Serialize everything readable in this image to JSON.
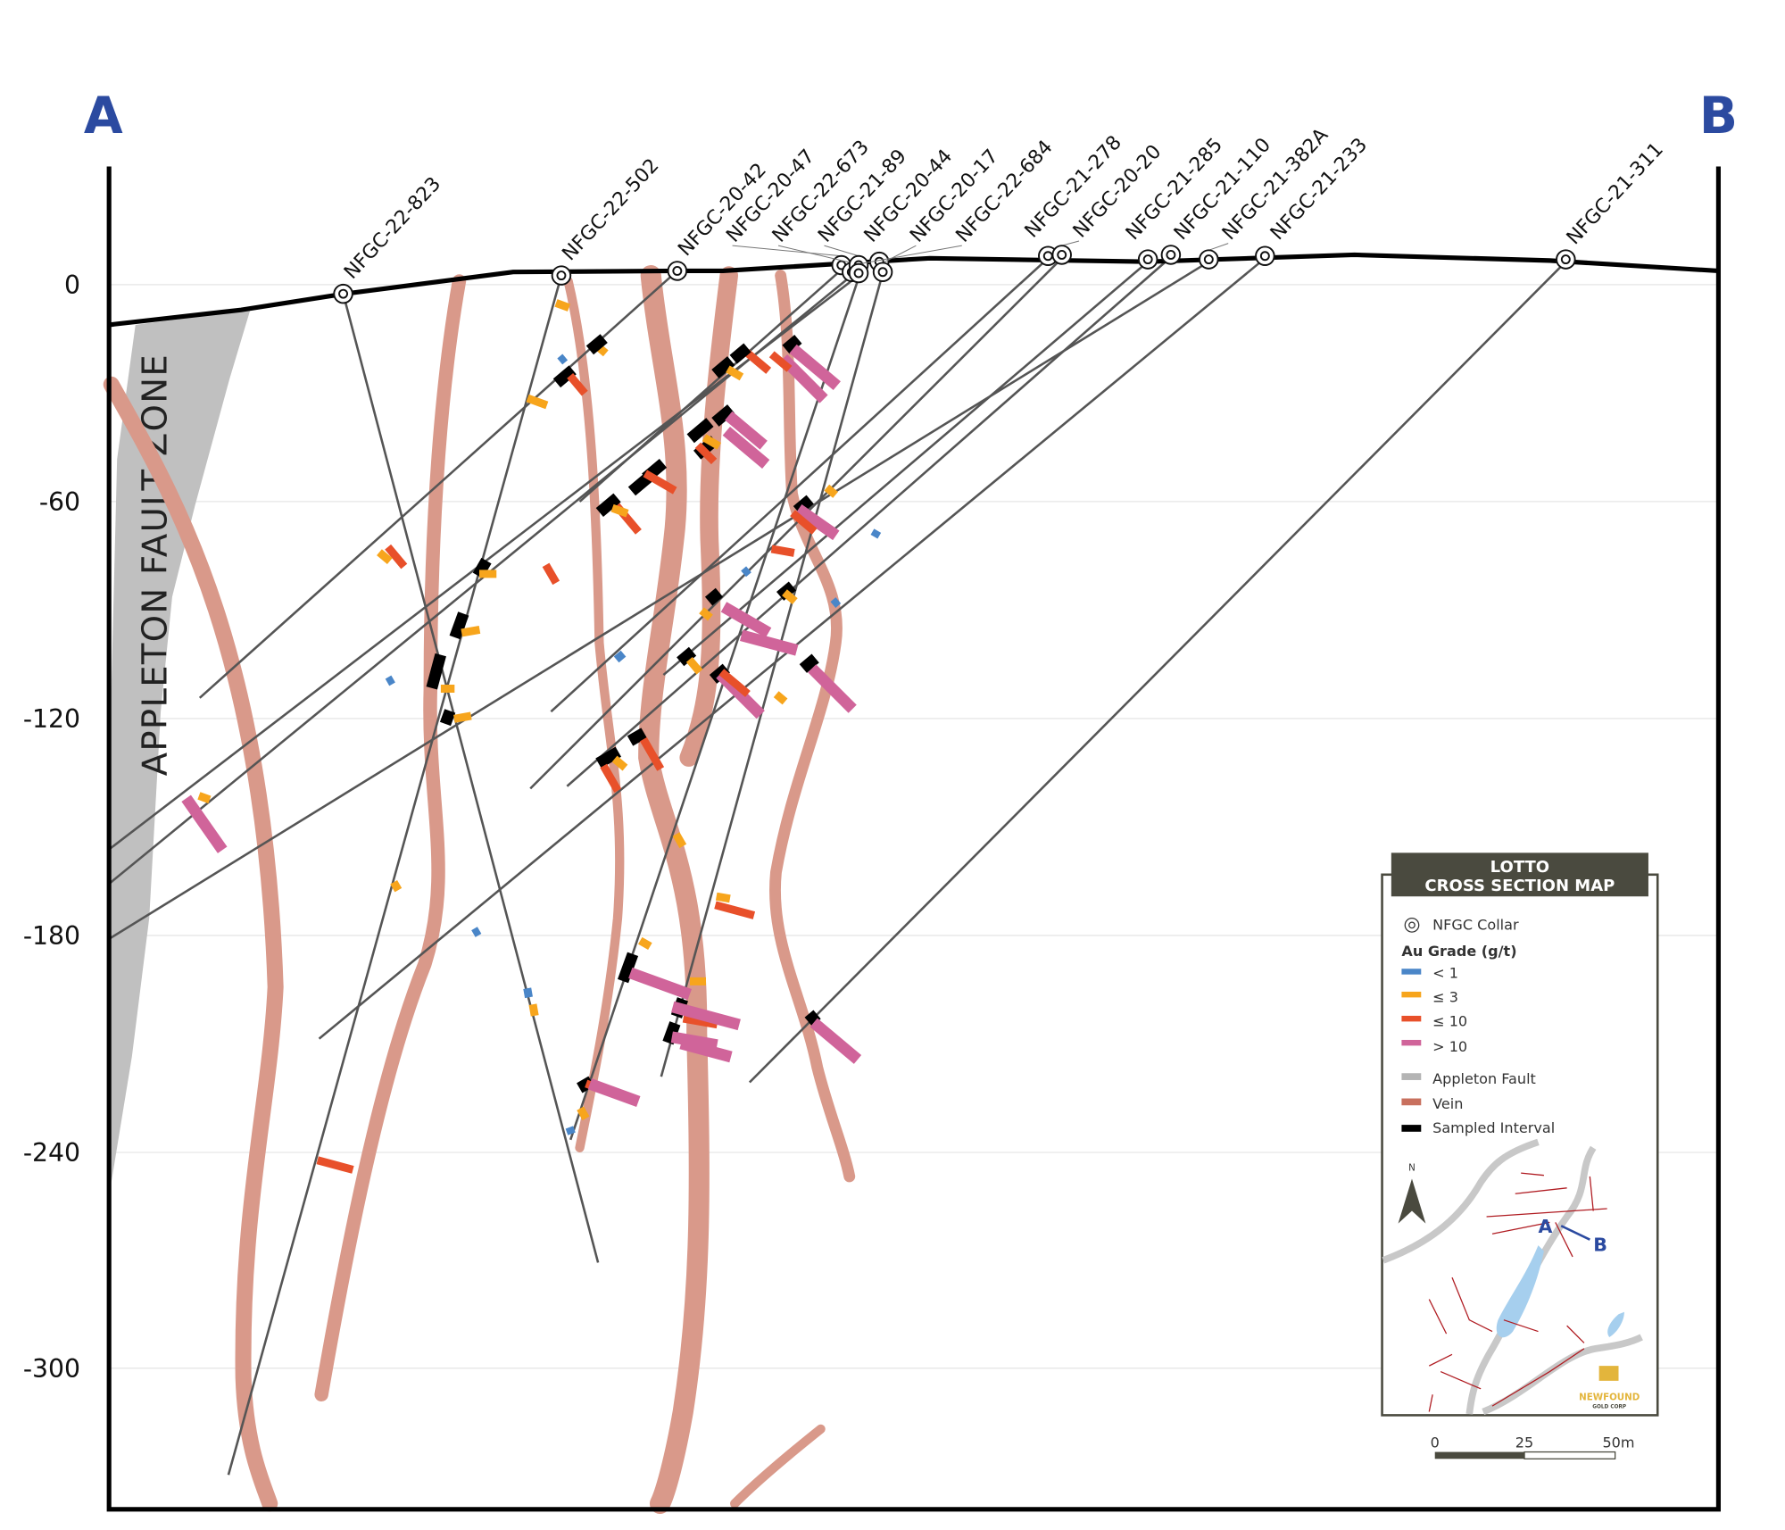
{
  "section": {
    "start_label": "A",
    "end_label": "B",
    "fault_zone_label": "APPLETON FAULT ZONE"
  },
  "y_axis": {
    "ticks": [
      "0",
      "-60",
      "-120",
      "-180",
      "-240",
      "-300"
    ]
  },
  "drillholes": [
    "NFGC-22-823",
    "NFGC-22-502",
    "NFGC-20-42",
    "NFGC-20-47",
    "NFGC-22-673",
    "NFGC-21-89",
    "NFGC-20-44",
    "NFGC-20-17",
    "NFGC-22-684",
    "NFGC-21-278",
    "NFGC-20-20",
    "NFGC-21-285",
    "NFGC-21-110",
    "NFGC-21-382A",
    "NFGC-21-233",
    "NFGC-21-311"
  ],
  "legend": {
    "title_line1": "LOTTO",
    "title_line2": "CROSS SECTION MAP",
    "collar": "NFGC Collar",
    "grade_title": "Au Grade (g/t)",
    "grades": [
      {
        "label": "< 1",
        "color": "#4a86c8"
      },
      {
        "label": "≤ 3",
        "color": "#f7a51c"
      },
      {
        "label": "≤ 10",
        "color": "#e8502a"
      },
      {
        "label": "> 10",
        "color": "#d0649a"
      }
    ],
    "others": [
      {
        "label": "Appleton Fault",
        "color": "#b4b4b4"
      },
      {
        "label": "Vein",
        "color": "#c8705e"
      },
      {
        "label": "Sampled Interval",
        "color": "#000000"
      }
    ],
    "north": "N",
    "map_a": "A",
    "map_b": "B",
    "logo_main": "NEWFOUND",
    "logo_sub": "GOLD CORP",
    "scale": [
      "0",
      "25",
      "50m"
    ]
  },
  "colors": {
    "vein": "#d9998a",
    "fault": "#c0c0c0",
    "accent": "#2b4aa0",
    "legend_header": "#4a4a3f",
    "logo": "#e3b53c"
  }
}
